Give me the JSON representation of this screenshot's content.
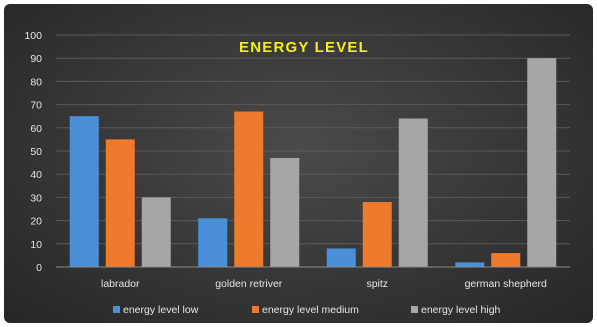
{
  "chart_data": {
    "type": "bar",
    "title": "ENERGY LEVEL",
    "categories": [
      "labrador",
      "golden retriver",
      "spitz",
      "german shepherd"
    ],
    "series": [
      {
        "name": "energy level low",
        "values": [
          65,
          21,
          8,
          2
        ],
        "color": "#4a90d9"
      },
      {
        "name": "energy level medium",
        "values": [
          55,
          67,
          28,
          6
        ],
        "color": "#f07a2c"
      },
      {
        "name": "energy level high",
        "values": [
          30,
          47,
          64,
          90
        ],
        "color": "#a6a6a6"
      }
    ],
    "ylim": [
      0,
      100
    ],
    "yticks": [
      0,
      10,
      20,
      30,
      40,
      50,
      60,
      70,
      80,
      90,
      100
    ],
    "grid": true,
    "legend_position": "bottom"
  }
}
